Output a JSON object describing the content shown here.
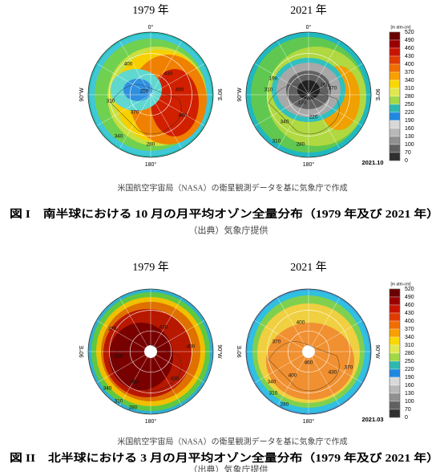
{
  "figures": [
    {
      "maps": [
        {
          "year": "1979 年",
          "axes": [
            "0°",
            "90°W",
            "90°E",
            "180°"
          ],
          "contours": [
            "400",
            "430",
            "310",
            "370",
            "340",
            "490",
            "460",
            "250",
            "280"
          ]
        },
        {
          "year": "2021 年",
          "axes": [
            "0°",
            "90°W",
            "90°E",
            "180°"
          ],
          "contours": [
            "190",
            "160",
            "130",
            "220",
            "310",
            "340",
            "370",
            "280",
            "310"
          ]
        }
      ],
      "date": "2021.10",
      "colorbar": {
        "unit": "[m atm-cm]",
        "ticks": [
          520,
          490,
          460,
          430,
          400,
          370,
          340,
          310,
          280,
          250,
          220,
          190,
          160,
          130,
          100,
          70,
          0
        ]
      },
      "source": "米国航空宇宙局（NASA）の衛星観測データを基に気象庁で作成",
      "caption": "図 I　南半球における 10 月の月平均オゾン全量分布（1979 年及び 2021 年）",
      "credit": "（出典）気象庁提供"
    },
    {
      "maps": [
        {
          "year": "1979 年",
          "axes": [
            "90°E",
            "90°W",
            "180°"
          ],
          "contours": [
            "490",
            "460",
            "430",
            "400",
            "370",
            "340",
            "310",
            "280",
            "430"
          ]
        },
        {
          "year": "2021 年",
          "axes": [
            "90°E",
            "90°W",
            "180°"
          ],
          "contours": [
            "460",
            "430",
            "400",
            "370",
            "340",
            "310",
            "280",
            "370",
            "400"
          ]
        }
      ],
      "date": "2021.03",
      "colorbar": {
        "unit": "[m atm-cm]",
        "ticks": [
          520,
          490,
          460,
          430,
          400,
          370,
          340,
          310,
          280,
          250,
          220,
          190,
          160,
          130,
          100,
          70,
          0
        ]
      },
      "source": "米国航空宇宙局（NASA）の衛星観測データを基に気象庁で作成",
      "caption": "図 II　北半球における 3 月の月平均オゾン全量分布（1979 年及び 2021 年）",
      "credit": "（出典）気象庁提供"
    }
  ]
}
